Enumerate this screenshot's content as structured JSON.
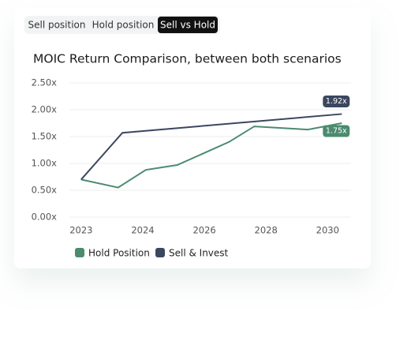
{
  "tabs": [
    "Sell position",
    "Hold position",
    "Sell vs Hold"
  ],
  "active_tab": 2,
  "chart_data": {
    "type": "line",
    "title": "MOIC Return Comparison, between both scenarios",
    "xlim": [
      -0.19,
      4.38
    ],
    "xticks": [
      {
        "value": 0,
        "label": "2023"
      },
      {
        "value": 1,
        "label": "2024"
      },
      {
        "value": 2,
        "label": "2026"
      },
      {
        "value": 3,
        "label": "2028"
      },
      {
        "value": 4,
        "label": "2030"
      }
    ],
    "ylim": [
      0,
      2.5
    ],
    "yticks": [
      {
        "value": 0,
        "label": "0.00x"
      },
      {
        "value": 0.5,
        "label": "0.50x"
      },
      {
        "value": 1,
        "label": "1.00x"
      },
      {
        "value": 1.5,
        "label": "1.50x"
      },
      {
        "value": 2,
        "label": "2.00x"
      },
      {
        "value": 2.5,
        "label": "2.50x"
      }
    ],
    "grid": true,
    "series": [
      {
        "name": "Hold Position",
        "color": "#4b8b6f",
        "x": [
          0,
          0.6,
          1.05,
          1.56,
          2.4,
          2.81,
          3.68,
          4.23
        ],
        "values": [
          0.7,
          0.55,
          0.88,
          0.97,
          1.4,
          1.69,
          1.63,
          1.75
        ],
        "value_labels": [
          null,
          null,
          null,
          null,
          null,
          null,
          null,
          "1.75x"
        ]
      },
      {
        "name": "Sell & Invest",
        "color": "#3b4760",
        "x": [
          0,
          0.67,
          4.23
        ],
        "values": [
          0.7,
          1.57,
          1.92
        ],
        "value_labels": [
          null,
          null,
          "1.92x"
        ]
      }
    ]
  }
}
